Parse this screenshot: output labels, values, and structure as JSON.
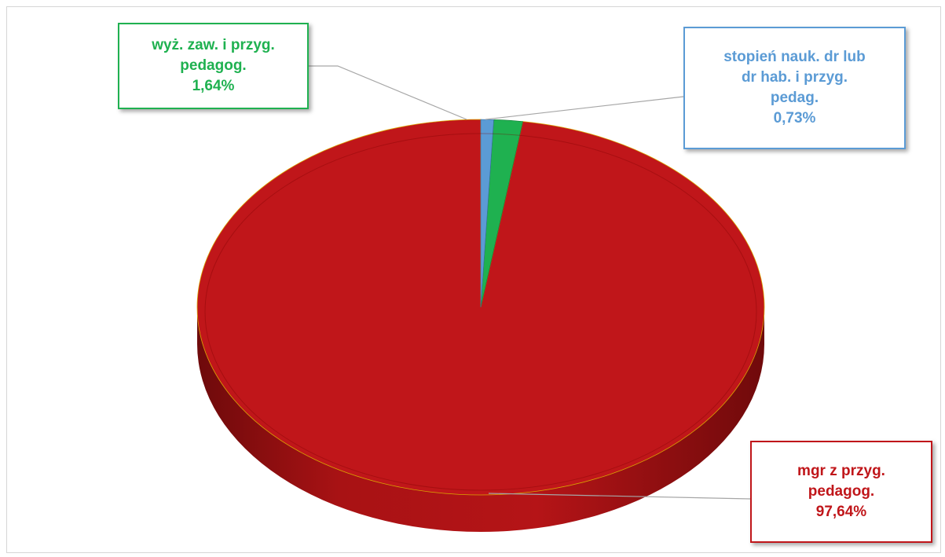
{
  "chart_data": {
    "type": "pie",
    "slices": [
      {
        "label_lines": [
          "mgr z przyg.",
          "pedagog."
        ],
        "value_text": "97,64%",
        "value": 97.64,
        "color": "#c0161a",
        "side_color": "#8b0e0f"
      },
      {
        "label_lines": [
          "wyż. zaw. i przyg.",
          "pedagog."
        ],
        "value_text": "1,64%",
        "value": 1.64,
        "color": "#1fb150",
        "side_color": "#137a36"
      },
      {
        "label_lines": [
          "stopień nauk. dr lub",
          "dr hab. i przyg.",
          "pedag."
        ],
        "value_text": "0,73%",
        "value": 0.73,
        "color": "#5b9bd5",
        "side_color": "#3a6fa0"
      }
    ],
    "start_angle_deg": 90,
    "direction": "counterclockwise",
    "style": "3d-pie",
    "legend": "none",
    "data_labels": "callout-boxes"
  }
}
